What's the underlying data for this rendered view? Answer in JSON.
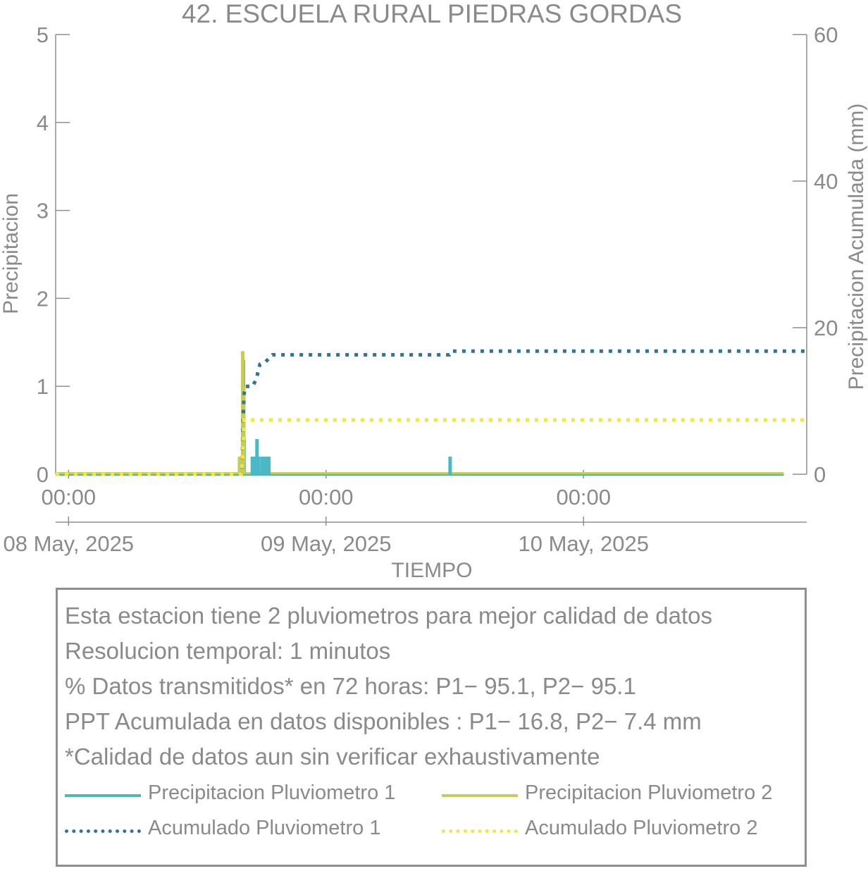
{
  "title": "42. ESCUELA RURAL PIEDRAS GORDAS",
  "chart_data": {
    "type": "bar",
    "title": "42. ESCUELA RURAL PIEDRAS GORDAS",
    "xlabel": "TIEMPO",
    "ylabel": "Precipitacion",
    "y2label": "Precipitacion Acumulada (mm)",
    "ylim": [
      0,
      5
    ],
    "y2lim": [
      0,
      60
    ],
    "yticks": [
      0,
      1,
      2,
      3,
      4,
      5
    ],
    "y2ticks": [
      0,
      20,
      40,
      60
    ],
    "x_range": [
      "2025-05-07T22:48",
      "2025-05-10T20:48"
    ],
    "x_tick_times": [
      "2025-05-08T00:00",
      "2025-05-09T00:00",
      "2025-05-10T00:00"
    ],
    "x_tick_labels_top": [
      "00:00",
      "00:00",
      "00:00"
    ],
    "x_tick_labels_bottom": [
      "08 May, 2025",
      "09 May, 2025",
      "10 May, 2025"
    ],
    "grid": false,
    "series": [
      {
        "name": "Precipitacion Pluviometro 1",
        "type": "bar",
        "axis": "left",
        "color": "#4bb8c6",
        "points": [
          {
            "t": "2025-05-08T16:18",
            "v": 1.3
          },
          {
            "t": "2025-05-08T16:22",
            "v": 0.4
          },
          {
            "t": "2025-05-08T17:08",
            "v": 0.2
          },
          {
            "t": "2025-05-08T17:16",
            "v": 0.2
          },
          {
            "t": "2025-05-08T17:24",
            "v": 0.2
          },
          {
            "t": "2025-05-08T17:34",
            "v": 0.4
          },
          {
            "t": "2025-05-08T17:42",
            "v": 0.2
          },
          {
            "t": "2025-05-08T18:02",
            "v": 0.2
          },
          {
            "t": "2025-05-08T18:10",
            "v": 0.2
          },
          {
            "t": "2025-05-08T18:18",
            "v": 0.2
          },
          {
            "t": "2025-05-08T18:26",
            "v": 0.2
          },
          {
            "t": "2025-05-08T18:40",
            "v": 0.2
          },
          {
            "t": "2025-05-09T11:34",
            "v": 0.2
          }
        ]
      },
      {
        "name": "Precipitacion Pluviometro 2",
        "type": "bar",
        "axis": "left",
        "color": "#c6cc5a",
        "points": [
          {
            "t": "2025-05-08T15:56",
            "v": 0.2
          },
          {
            "t": "2025-05-08T16:06",
            "v": 0.2
          },
          {
            "t": "2025-05-08T16:14",
            "v": 1.4
          },
          {
            "t": "2025-05-08T16:20",
            "v": 1.0
          }
        ]
      },
      {
        "name": "Acumulado Pluviometro 1",
        "type": "line",
        "axis": "right",
        "color": "#2e7596",
        "points": [
          {
            "t": "2025-05-07T22:48",
            "v": 0
          },
          {
            "t": "2025-05-08T16:10",
            "v": 0
          },
          {
            "t": "2025-05-08T16:16",
            "v": 7.5
          },
          {
            "t": "2025-05-08T16:22",
            "v": 11
          },
          {
            "t": "2025-05-08T16:30",
            "v": 12
          },
          {
            "t": "2025-05-08T17:10",
            "v": 12
          },
          {
            "t": "2025-05-08T17:30",
            "v": 13
          },
          {
            "t": "2025-05-08T17:50",
            "v": 15
          },
          {
            "t": "2025-05-08T18:20",
            "v": 15.3
          },
          {
            "t": "2025-05-08T19:00",
            "v": 16.3
          },
          {
            "t": "2025-05-09T11:30",
            "v": 16.3
          },
          {
            "t": "2025-05-09T11:40",
            "v": 16.8
          },
          {
            "t": "2025-05-10T20:48",
            "v": 16.8
          }
        ]
      },
      {
        "name": "Acumulado Pluviometro 2",
        "type": "line",
        "axis": "right",
        "color": "#f2e83a",
        "points": [
          {
            "t": "2025-05-07T22:48",
            "v": 0
          },
          {
            "t": "2025-05-08T16:08",
            "v": 0
          },
          {
            "t": "2025-05-08T16:14",
            "v": 3
          },
          {
            "t": "2025-05-08T16:20",
            "v": 7.4
          },
          {
            "t": "2025-05-10T20:48",
            "v": 7.4
          }
        ]
      }
    ]
  },
  "info": {
    "lines": [
      "Esta estacion tiene 2 pluviometros para mejor calidad de datos",
      "Resolucion temporal: 1 minutos",
      "% Datos transmitidos* en 72 horas: P1− 95.1, P2− 95.1",
      "PPT Acumulada en datos disponibles : P1− 16.8, P2−  7.4 mm",
      "*Calidad de datos aun sin verificar exhaustivamente"
    ],
    "legend": [
      {
        "label": "Precipitacion Pluviometro 1",
        "color": "#4bb8c6",
        "style": "solid"
      },
      {
        "label": "Precipitacion Pluviometro 2",
        "color": "#c6cc5a",
        "style": "solid"
      },
      {
        "label": "Acumulado Pluviometro 1",
        "color": "#2e7596",
        "style": "dotted"
      },
      {
        "label": "Acumulado Pluviometro 2",
        "color": "#f2e83a",
        "style": "dotted"
      }
    ]
  }
}
